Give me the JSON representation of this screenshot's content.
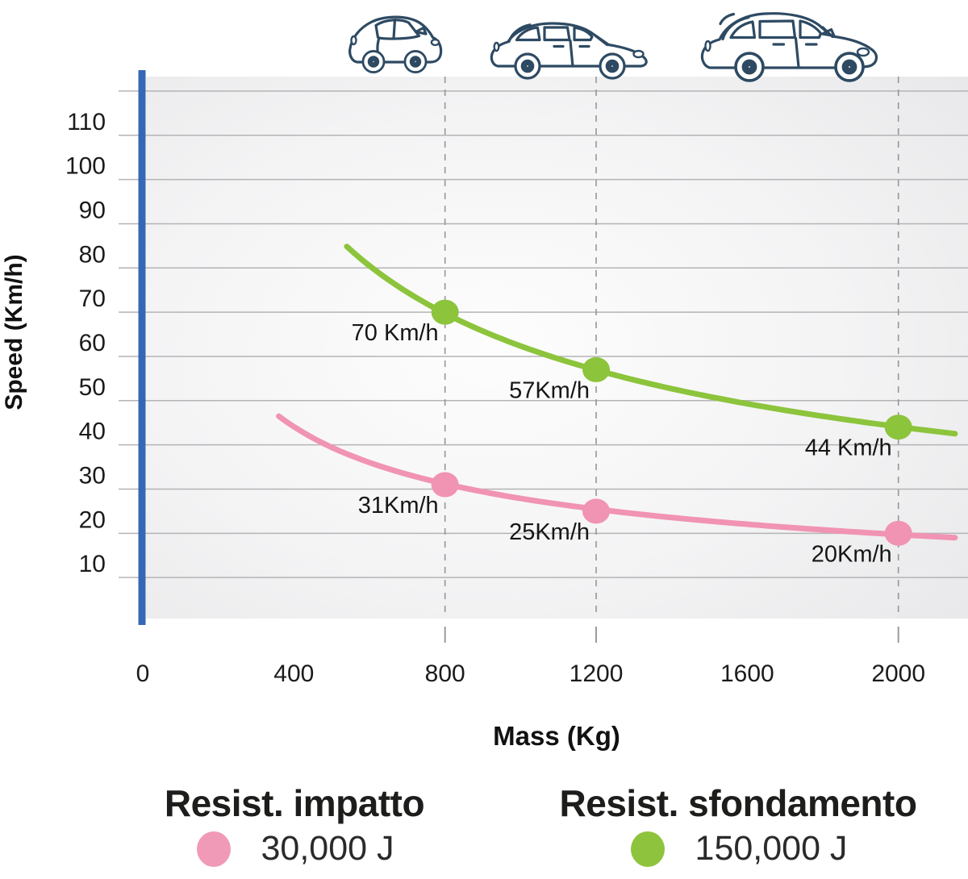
{
  "figure": {
    "xlabel": "Mass (Kg)",
    "ylabel": "Speed (Km/h)"
  },
  "legend": {
    "items": [
      {
        "title": "Resist. impatto",
        "value": "30,000 J",
        "color": "#f09ab8"
      },
      {
        "title": "Resist. sfondamento",
        "value": "150,000 J",
        "color": "#8ec43d"
      }
    ]
  },
  "chart_data": {
    "type": "line",
    "title": "",
    "xlabel": "Mass (Kg)",
    "ylabel": "Speed (Km/h)",
    "xlim": [
      0,
      2180
    ],
    "ylim": [
      0,
      124
    ],
    "xticks": [
      0,
      400,
      800,
      1200,
      1600,
      2000
    ],
    "yticks": [
      110,
      100,
      90,
      80,
      70,
      60,
      50,
      40,
      30,
      20,
      10
    ],
    "y_gridlines": [
      120,
      110,
      100,
      90,
      80,
      70,
      60,
      50,
      40,
      30,
      20,
      10
    ],
    "dashed_vlines_x": [
      800,
      1200,
      2000
    ],
    "grid": "horizontal",
    "legend_position": "bottom",
    "series": [
      {
        "name": "Resist. impatto",
        "energy_joules": 30000,
        "energy_label": "30,000 J",
        "color": "#f193b3",
        "mass_range_kg": [
          360,
          2150
        ],
        "points": [
          {
            "mass_kg": 800,
            "speed_kmh": 31,
            "label": "31Km/h"
          },
          {
            "mass_kg": 1200,
            "speed_kmh": 25,
            "label": "25Km/h"
          },
          {
            "mass_kg": 2000,
            "speed_kmh": 20,
            "label": "20Km/h"
          }
        ]
      },
      {
        "name": "Resist. sfondamento",
        "energy_joules": 150000,
        "energy_label": "150,000 J",
        "color": "#8cc43c",
        "mass_range_kg": [
          540,
          2150
        ],
        "points": [
          {
            "mass_kg": 800,
            "speed_kmh": 70,
            "label": "70 Km/h"
          },
          {
            "mass_kg": 1200,
            "speed_kmh": 57,
            "label": "57Km/h"
          },
          {
            "mass_kg": 2000,
            "speed_kmh": 44,
            "label": "44 Km/h"
          }
        ]
      }
    ],
    "vehicle_icons": [
      {
        "name": "city-car",
        "mass_kg": 800
      },
      {
        "name": "hatchback",
        "mass_kg": 1200
      },
      {
        "name": "suv",
        "mass_kg": 2000
      }
    ]
  },
  "colors": {
    "axis_blue": "#3568b4",
    "axis_blue_fade": "#9db0dd",
    "gridline": "#b4b4b7",
    "dashed_line": "#97979b",
    "car_outline": "#2e4a63"
  }
}
